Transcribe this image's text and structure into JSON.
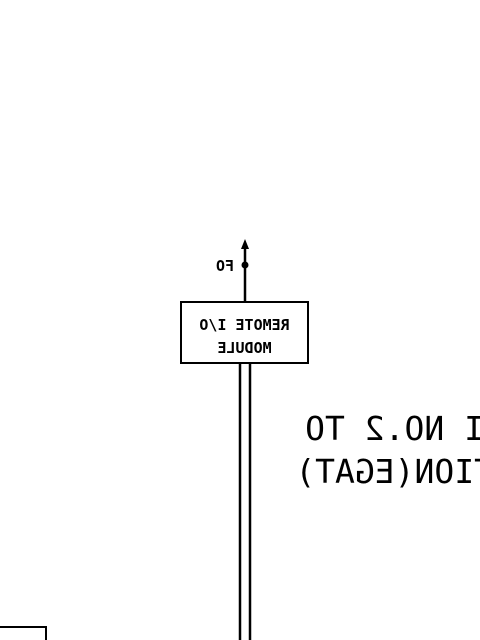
{
  "diagram": {
    "fo_label": "FO",
    "module_line1": "REMOTE I/O",
    "module_line2": "MODULE",
    "station_line1": "I NO.2 TO",
    "station_line2": "TION(EGAT)"
  }
}
